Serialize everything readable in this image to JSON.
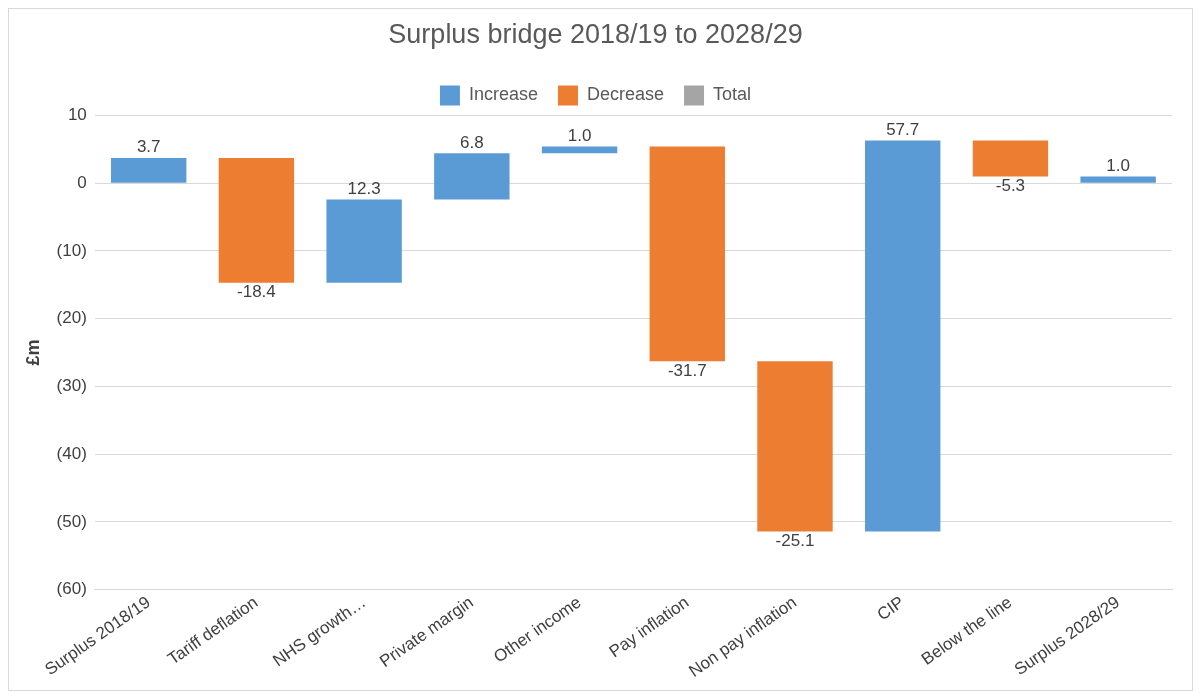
{
  "chart_data": {
    "type": "bar",
    "title": "Surplus bridge 2018/19 to 2028/29",
    "ylabel": "£m",
    "categories": [
      "Surplus 2018/19",
      "Tariff deflation",
      "NHS growth…",
      "Private margin",
      "Other income",
      "Pay inflation",
      "Non pay inflation",
      "CIP",
      "Below the line",
      "Surplus 2028/29"
    ],
    "series": [
      {
        "name": "Increase",
        "color": "#5b9bd5",
        "base": [
          0,
          null,
          -14.7,
          -2.4,
          4.4,
          null,
          null,
          -51.4,
          null,
          0
        ],
        "values": [
          3.7,
          null,
          12.3,
          6.8,
          1.0,
          null,
          null,
          57.7,
          null,
          1.0
        ],
        "value_labels": [
          "3.7",
          null,
          "12.3",
          "6.8",
          "1.0",
          null,
          null,
          "57.7",
          null,
          "1.0"
        ]
      },
      {
        "name": "Decrease",
        "color": "#ed7d31",
        "base": [
          null,
          3.7,
          null,
          null,
          null,
          5.4,
          -26.3,
          null,
          6.3,
          null
        ],
        "values": [
          null,
          -18.4,
          null,
          null,
          null,
          -31.7,
          -25.1,
          null,
          -5.3,
          null
        ],
        "value_labels": [
          null,
          "-18.4",
          null,
          null,
          null,
          "-31.7",
          "-25.1",
          null,
          "-5.3",
          null
        ]
      },
      {
        "name": "Total",
        "color": "#a5a5a5",
        "values": [
          null,
          null,
          null,
          null,
          null,
          null,
          null,
          null,
          null,
          null
        ]
      }
    ],
    "ylim": [
      -60,
      10
    ],
    "yticks": [
      10,
      0,
      {
        "value": -10,
        "label": "(10)"
      },
      {
        "value": -20,
        "label": "(20)"
      },
      {
        "value": -30,
        "label": "(30)"
      },
      {
        "value": -40,
        "label": "(40)"
      },
      {
        "value": -50,
        "label": "(50)"
      },
      {
        "value": -60,
        "label": "(60)"
      }
    ],
    "grid": "y",
    "legend": "top"
  }
}
